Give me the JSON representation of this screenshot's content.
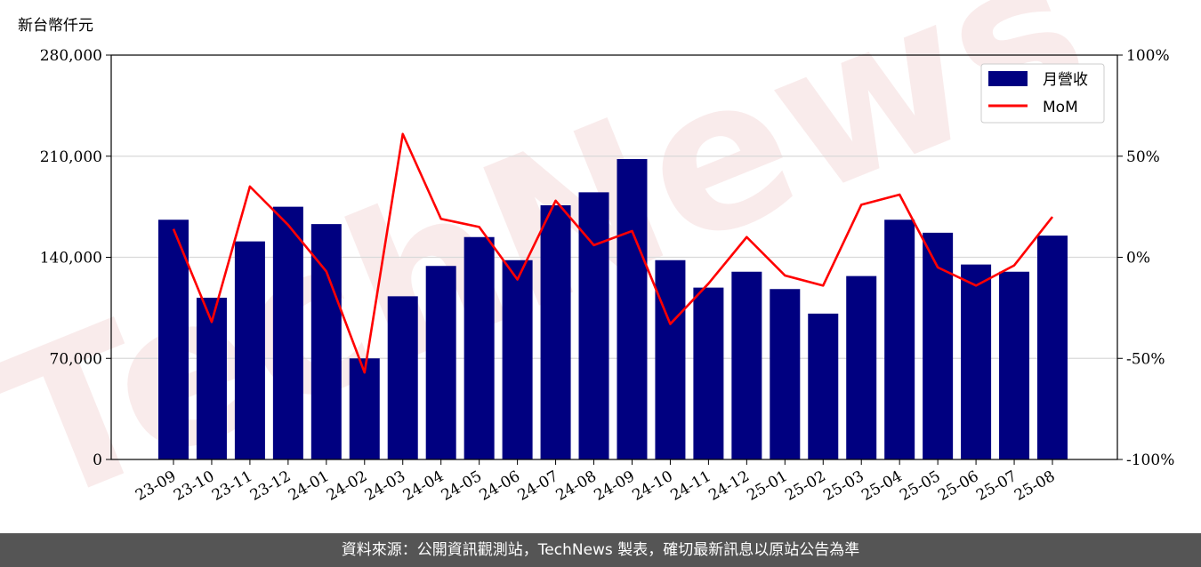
{
  "chart_data": {
    "type": "bar",
    "unit_label": "新台幣仟元",
    "categories": [
      "23-09",
      "23-10",
      "23-11",
      "23-12",
      "24-01",
      "24-02",
      "24-03",
      "24-04",
      "24-05",
      "24-06",
      "24-07",
      "24-08",
      "24-09",
      "24-10",
      "24-11",
      "24-12",
      "25-01",
      "25-02",
      "25-03",
      "25-04",
      "25-05",
      "25-06",
      "25-07",
      "25-08"
    ],
    "series": [
      {
        "name": "月營收",
        "type": "bar",
        "color": "#000080",
        "axis": "left",
        "values": [
          166000,
          112000,
          151000,
          175000,
          163000,
          70000,
          113000,
          134000,
          154000,
          138000,
          176000,
          185000,
          208000,
          138000,
          119000,
          130000,
          118000,
          101000,
          127000,
          166000,
          157000,
          135000,
          130000,
          155000
        ]
      },
      {
        "name": "MoM",
        "type": "line",
        "color": "#ff0000",
        "axis": "right",
        "values": [
          14,
          -32,
          35,
          16,
          -7,
          -57,
          61,
          19,
          15,
          -11,
          28,
          6,
          13,
          -33,
          -13,
          10,
          -9,
          -14,
          26,
          31,
          -5,
          -14,
          -4,
          20
        ]
      }
    ],
    "y_left": {
      "min": 0,
      "max": 280000,
      "ticks": [
        0,
        70000,
        140000,
        210000,
        280000
      ],
      "tick_labels": [
        "0",
        "70,000",
        "140,000",
        "210,000",
        "280,000"
      ]
    },
    "y_right": {
      "min": -100,
      "max": 100,
      "ticks": [
        -100,
        -50,
        0,
        50,
        100
      ],
      "tick_labels": [
        "-100%",
        "-50%",
        "0%",
        "50%",
        "100%"
      ]
    },
    "grid": "horizontal",
    "legend_position": "top-right"
  },
  "watermark": "TechNews",
  "footer": {
    "text": "資料來源：公開資訊觀測站，TechNews 製表，確切最新訊息以原站公告為準"
  }
}
